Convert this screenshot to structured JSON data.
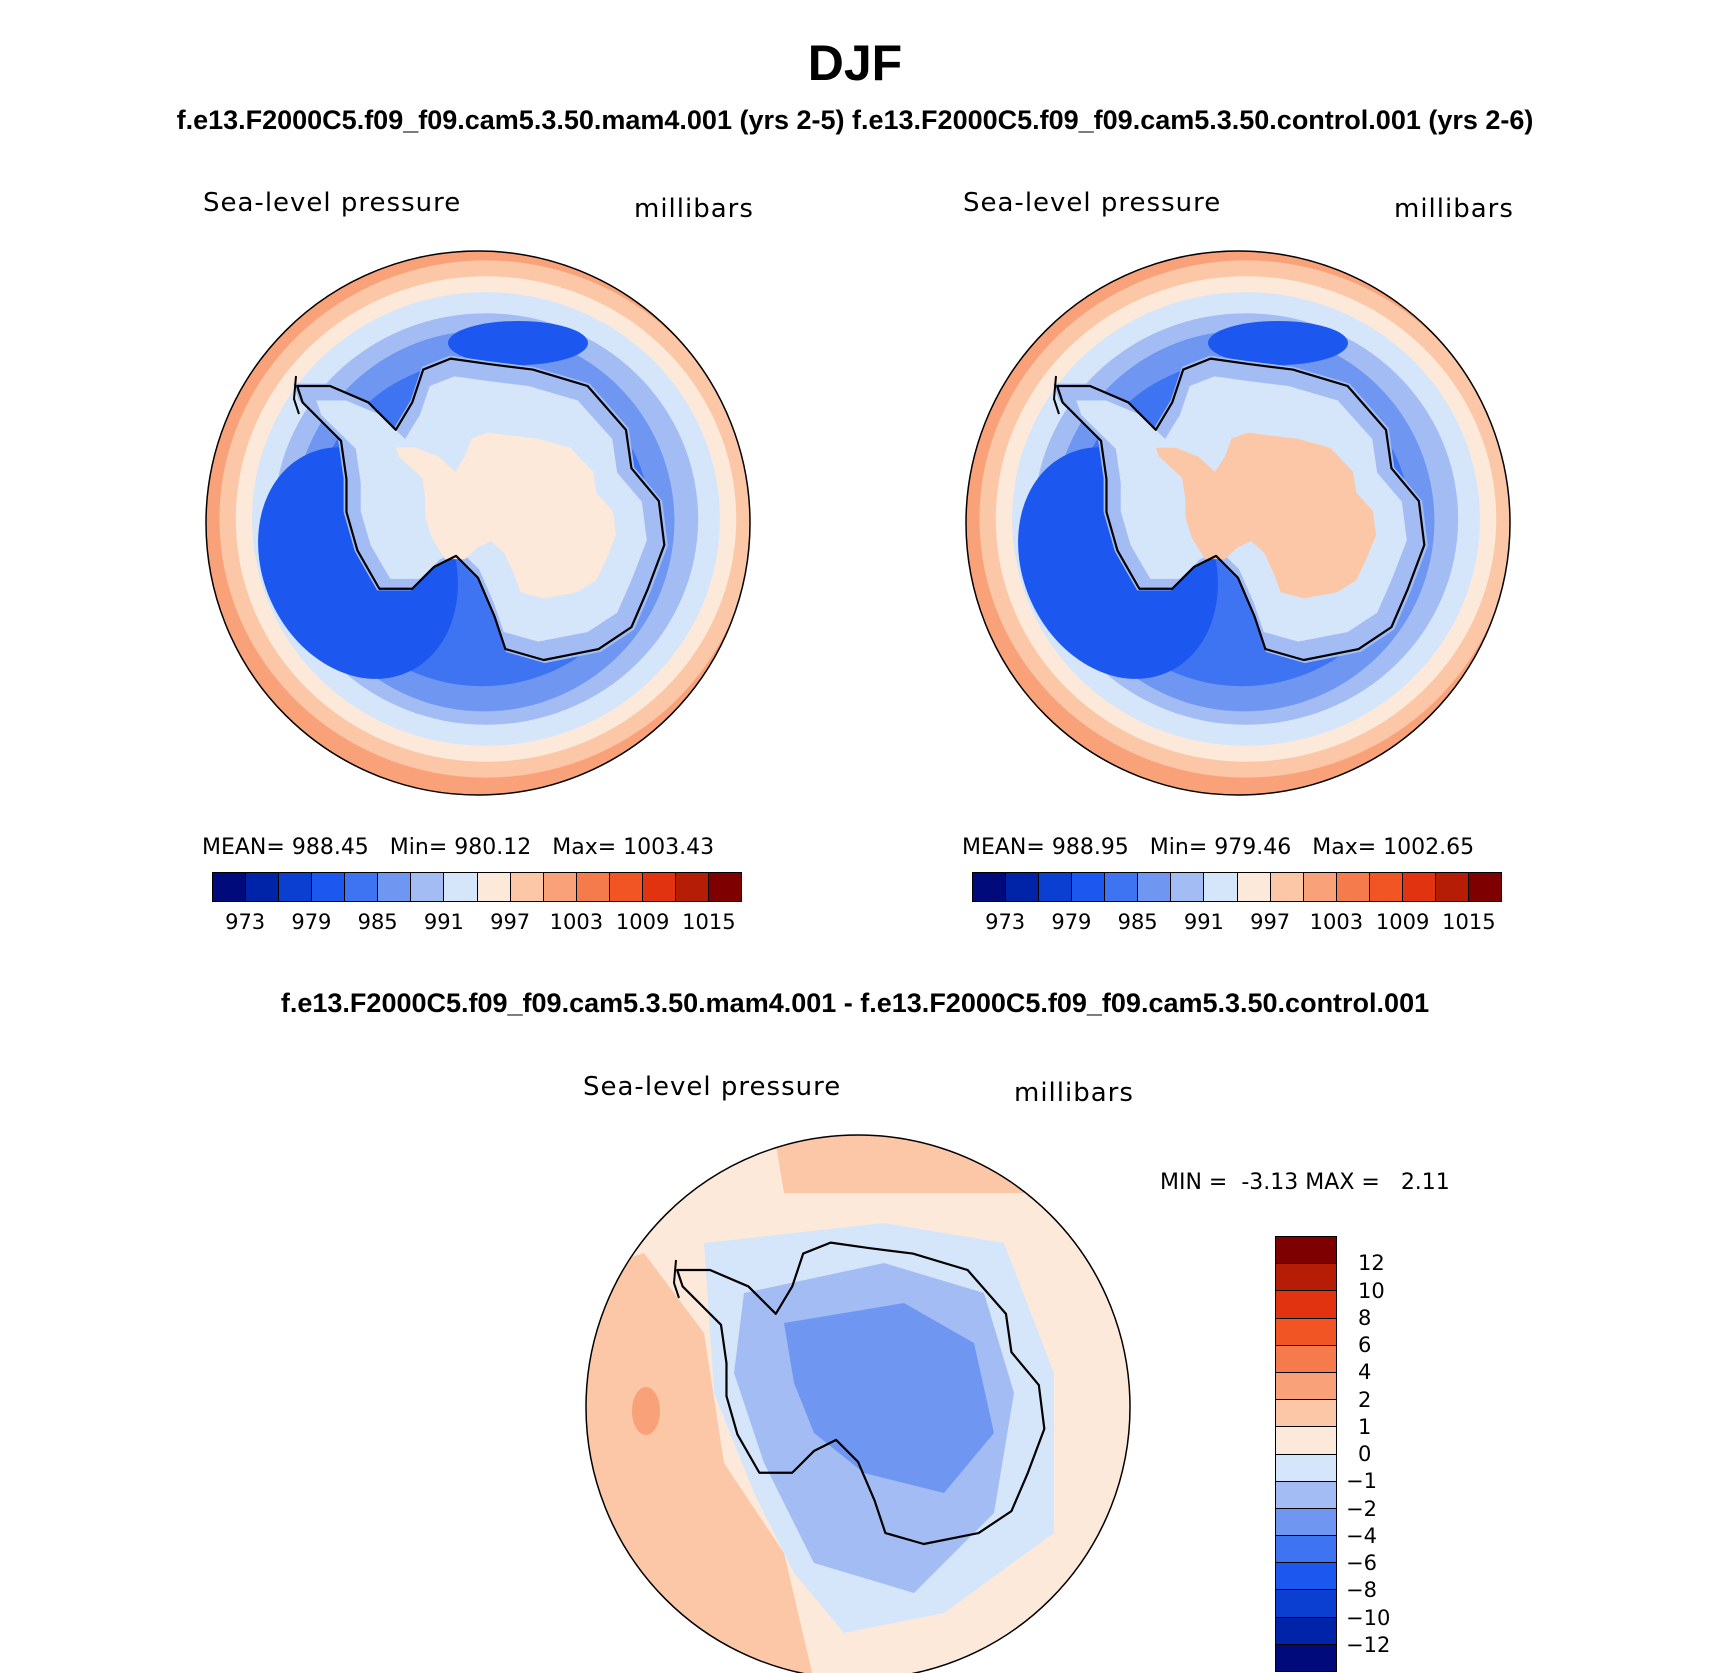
{
  "title": "DJF",
  "subtitle_top": "f.e13.F2000C5.f09_f09.cam5.3.50.mam4.001 (yrs 2-5) f.e13.F2000C5.f09_f09.cam5.3.50.control.001 (yrs 2-6)",
  "subtitle_diff": "f.e13.F2000C5.f09_f09.cam5.3.50.mam4.001 - f.e13.F2000C5.f09_f09.cam5.3.50.control.001",
  "chart_data": [
    {
      "type": "heatmap",
      "projection": "south-polar-stereographic",
      "variable": "Sea-level pressure",
      "units": "millibars",
      "stats": {
        "mean_label": "MEAN=",
        "mean": "988.45",
        "min_label": "Min=",
        "min": "980.12",
        "max_label": "Max=",
        "max": "1003.43"
      },
      "levels": [
        973,
        976,
        979,
        982,
        985,
        988,
        991,
        994,
        997,
        1000,
        1003,
        1006,
        1009,
        1012,
        1015
      ],
      "tick_labels": [
        "973",
        "979",
        "985",
        "991",
        "997",
        "1003",
        "1009",
        "1015"
      ],
      "colors": [
        "#000a7a",
        "#0024a8",
        "#0b3fd1",
        "#1c58f0",
        "#3e74f2",
        "#6f97f2",
        "#a3bdf4",
        "#d6e6fa",
        "#fde9da",
        "#fbc7a7",
        "#f9a27a",
        "#f57b4d",
        "#f15524",
        "#e1330f",
        "#b61d06",
        "#7e0000"
      ],
      "field_params": {
        "bg_index": 8,
        "ring_offsets": [
          0.22,
          0.35,
          0.5,
          0.67,
          0.82,
          0.93
        ],
        "ring_indices": [
          9,
          8,
          7,
          6,
          5,
          4
        ],
        "low_index": 3,
        "ant_indices": [
          7,
          8
        ]
      }
    },
    {
      "type": "heatmap",
      "projection": "south-polar-stereographic",
      "variable": "Sea-level pressure",
      "units": "millibars",
      "stats": {
        "mean_label": "MEAN=",
        "mean": "988.95",
        "min_label": "Min=",
        "min": "979.46",
        "max_label": "Max=",
        "max": "1002.65"
      },
      "levels": [
        973,
        976,
        979,
        982,
        985,
        988,
        991,
        994,
        997,
        1000,
        1003,
        1006,
        1009,
        1012,
        1015
      ],
      "tick_labels": [
        "973",
        "979",
        "985",
        "991",
        "997",
        "1003",
        "1009",
        "1015"
      ],
      "colors": [
        "#000a7a",
        "#0024a8",
        "#0b3fd1",
        "#1c58f0",
        "#3e74f2",
        "#6f97f2",
        "#a3bdf4",
        "#d6e6fa",
        "#fde9da",
        "#fbc7a7",
        "#f9a27a",
        "#f57b4d",
        "#f15524",
        "#e1330f",
        "#b61d06",
        "#7e0000"
      ],
      "field_params": {
        "bg_index": 8,
        "ring_offsets": [
          0.22,
          0.35,
          0.5,
          0.67,
          0.82,
          0.93
        ],
        "ring_indices": [
          9,
          8,
          7,
          6,
          5,
          4
        ],
        "low_index": 3,
        "ant_indices": [
          7,
          9
        ]
      }
    },
    {
      "type": "heatmap",
      "projection": "south-polar-stereographic",
      "variable": "Sea-level pressure",
      "units": "millibars",
      "stats": {
        "min_label": "MIN =",
        "min": "-3.13",
        "max_label": "MAX =",
        "max": "2.11"
      },
      "levels": [
        -12,
        -10,
        -8,
        -6,
        -4,
        -2,
        -1,
        0,
        1,
        2,
        4,
        6,
        8,
        10,
        12
      ],
      "tick_labels": [
        "12",
        "10",
        "8",
        "6",
        "4",
        "2",
        "1",
        "0",
        "−1",
        "−2",
        "−4",
        "−6",
        "−8",
        "−10",
        "−12"
      ],
      "colors": [
        "#7e0000",
        "#b61d06",
        "#e1330f",
        "#f15524",
        "#f57b4d",
        "#f9a27a",
        "#fbc7a7",
        "#fde9da",
        "#d6e6fa",
        "#a3bdf4",
        "#6f97f2",
        "#3e74f2",
        "#1c58f0",
        "#0b3fd1",
        "#0024a8",
        "#000a7a"
      ]
    }
  ]
}
